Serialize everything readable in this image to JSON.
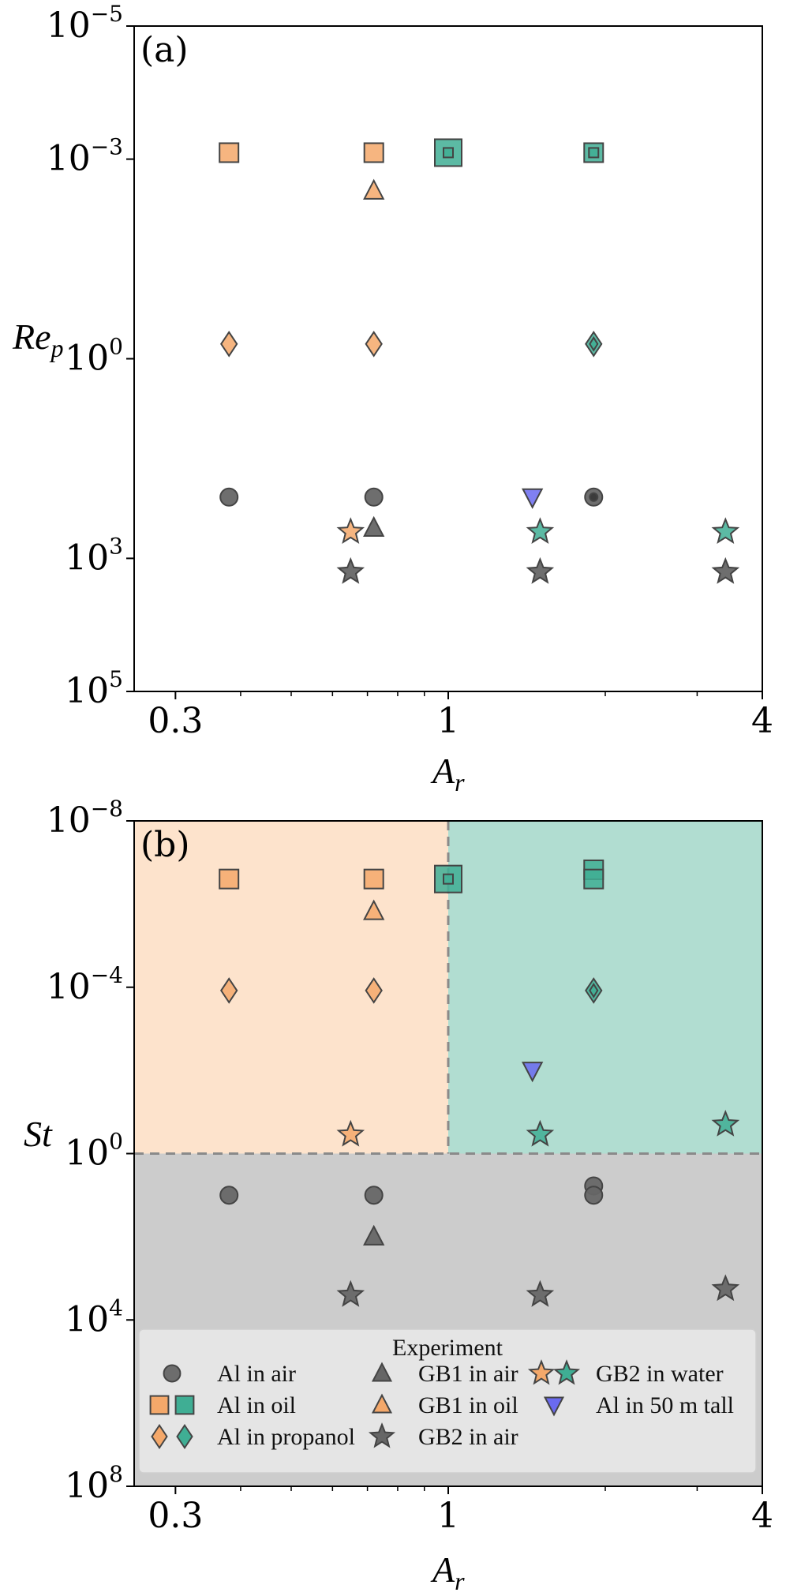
{
  "chart_data": [
    {
      "type": "scatter",
      "panel_label": "(a)",
      "xlabel": "A",
      "xlabel_sub": "r",
      "ylabel": "Re",
      "ylabel_sub": "p",
      "x_scale": "log",
      "y_scale": "log",
      "y_inverted": true,
      "xlim": [
        0.25,
        4
      ],
      "ylim": [
        100000,
        1e-05
      ],
      "x_ticks": [
        {
          "value": 0.3,
          "label": "0.3"
        },
        {
          "value": 1,
          "label": "1"
        },
        {
          "value": 4,
          "label": "4"
        }
      ],
      "y_ticks": [
        {
          "value": 1e-05,
          "base": "10",
          "exp": "−5"
        },
        {
          "value": 0.001,
          "base": "10",
          "exp": "−3"
        },
        {
          "value": 1,
          "base": "10",
          "exp": "0"
        },
        {
          "value": 1000,
          "base": "10",
          "exp": "3"
        },
        {
          "value": 100000,
          "base": "10",
          "exp": "5"
        }
      ],
      "points": [
        {
          "group": "Al in oil",
          "marker": "square",
          "color": "#f4a86a",
          "x": 0.38,
          "y": 0.0008
        },
        {
          "group": "Al in oil",
          "marker": "square",
          "color": "#f4a86a",
          "x": 0.72,
          "y": 0.0008
        },
        {
          "group": "Al in oil",
          "marker": "square-big",
          "color": "#3fae94",
          "x": 1.0,
          "y": 0.0008
        },
        {
          "group": "Al in oil",
          "marker": "square-inner",
          "color": "#3fae94",
          "x": 1.0,
          "y": 0.0008
        },
        {
          "group": "Al in oil",
          "marker": "square",
          "color": "#3fae94",
          "x": 1.9,
          "y": 0.0008
        },
        {
          "group": "Al in oil",
          "marker": "square-inner",
          "color": "#3fae94",
          "x": 1.9,
          "y": 0.0008
        },
        {
          "group": "GB1 in oil",
          "marker": "triangle-up",
          "color": "#f4a86a",
          "x": 0.72,
          "y": 0.003
        },
        {
          "group": "Al in propanol",
          "marker": "diamond",
          "color": "#f4a86a",
          "x": 0.38,
          "y": 0.6
        },
        {
          "group": "Al in propanol",
          "marker": "diamond",
          "color": "#f4a86a",
          "x": 0.72,
          "y": 0.6
        },
        {
          "group": "Al in propanol",
          "marker": "diamond",
          "color": "#3fae94",
          "x": 1.9,
          "y": 0.6
        },
        {
          "group": "Al in propanol",
          "marker": "diamond-small",
          "color": "#3fae94",
          "x": 1.9,
          "y": 0.6
        },
        {
          "group": "Al in air",
          "marker": "circle",
          "color": "#666666",
          "x": 0.38,
          "y": 120
        },
        {
          "group": "Al in air",
          "marker": "circle",
          "color": "#666666",
          "x": 0.72,
          "y": 120
        },
        {
          "group": "Al in air",
          "marker": "circle",
          "color": "#666666",
          "x": 1.9,
          "y": 120
        },
        {
          "group": "Al in air",
          "marker": "circle-small",
          "color": "#333333",
          "x": 1.9,
          "y": 120
        },
        {
          "group": "Al in 50 m tall",
          "marker": "triangle-down",
          "color": "#6a6af0",
          "x": 1.45,
          "y": 120
        },
        {
          "group": "GB2 in water",
          "marker": "star",
          "color": "#f4a86a",
          "x": 0.65,
          "y": 400
        },
        {
          "group": "GB1 in air",
          "marker": "triangle-up",
          "color": "#666666",
          "x": 0.72,
          "y": 350
        },
        {
          "group": "GB2 in water",
          "marker": "star",
          "color": "#3fae94",
          "x": 1.5,
          "y": 400
        },
        {
          "group": "GB2 in water",
          "marker": "star",
          "color": "#3fae94",
          "x": 3.4,
          "y": 400
        },
        {
          "group": "GB2 in air",
          "marker": "star",
          "color": "#666666",
          "x": 0.65,
          "y": 1600
        },
        {
          "group": "GB2 in air",
          "marker": "star",
          "color": "#666666",
          "x": 1.5,
          "y": 1600
        },
        {
          "group": "GB2 in air",
          "marker": "star",
          "color": "#666666",
          "x": 3.4,
          "y": 1600
        }
      ]
    },
    {
      "type": "scatter",
      "panel_label": "(b)",
      "xlabel": "A",
      "xlabel_sub": "r",
      "ylabel": "St",
      "x_scale": "log",
      "y_scale": "log",
      "y_inverted": true,
      "xlim": [
        0.25,
        4
      ],
      "ylim": [
        100000000,
        1e-08
      ],
      "x_ticks": [
        {
          "value": 0.3,
          "label": "0.3"
        },
        {
          "value": 1,
          "label": "1"
        },
        {
          "value": 4,
          "label": "4"
        }
      ],
      "y_ticks": [
        {
          "value": 1e-08,
          "base": "10",
          "exp": "−8"
        },
        {
          "value": 0.0001,
          "base": "10",
          "exp": "−4"
        },
        {
          "value": 1,
          "base": "10",
          "exp": "0"
        },
        {
          "value": 10000,
          "base": "10",
          "exp": "4"
        },
        {
          "value": 100000000,
          "base": "10",
          "exp": "8"
        }
      ],
      "regions": [
        {
          "name": "orange",
          "color": "#fde3cc",
          "x0": 0.25,
          "x1": 1,
          "y0": 1e-08,
          "y1": 1
        },
        {
          "name": "teal",
          "color": "#b1ddd1",
          "x0": 1,
          "x1": 4,
          "y0": 1e-08,
          "y1": 1
        },
        {
          "name": "gray",
          "color": "#cccccc",
          "x0": 0.25,
          "x1": 4,
          "y0": 1,
          "y1": 100000000
        }
      ],
      "dividers": {
        "x": 1,
        "y": 1
      },
      "points": [
        {
          "group": "Al in oil",
          "marker": "square",
          "color": "#f4a86a",
          "x": 0.38,
          "y": 2.5e-07
        },
        {
          "group": "Al in oil",
          "marker": "square",
          "color": "#f4a86a",
          "x": 0.72,
          "y": 2.5e-07
        },
        {
          "group": "Al in oil",
          "marker": "square-big",
          "color": "#3fae94",
          "x": 1.0,
          "y": 2.5e-07
        },
        {
          "group": "Al in oil",
          "marker": "square-inner",
          "color": "#3fae94",
          "x": 1.0,
          "y": 2.5e-07
        },
        {
          "group": "Al in oil",
          "marker": "square",
          "color": "#3fae94",
          "x": 1.9,
          "y": 1.5e-07
        },
        {
          "group": "Al in oil",
          "marker": "square",
          "color": "#3fae94",
          "x": 1.9,
          "y": 2.5e-07
        },
        {
          "group": "GB1 in oil",
          "marker": "triangle-up",
          "color": "#f4a86a",
          "x": 0.72,
          "y": 1.5e-06
        },
        {
          "group": "Al in propanol",
          "marker": "diamond",
          "color": "#f4a86a",
          "x": 0.38,
          "y": 0.00012
        },
        {
          "group": "Al in propanol",
          "marker": "diamond",
          "color": "#f4a86a",
          "x": 0.72,
          "y": 0.00012
        },
        {
          "group": "Al in propanol",
          "marker": "diamond",
          "color": "#3fae94",
          "x": 1.9,
          "y": 0.00012
        },
        {
          "group": "Al in propanol",
          "marker": "diamond-small",
          "color": "#3fae94",
          "x": 1.9,
          "y": 0.00012
        },
        {
          "group": "Al in 50 m tall",
          "marker": "triangle-down",
          "color": "#6a6af0",
          "x": 1.45,
          "y": 0.01
        },
        {
          "group": "GB2 in water",
          "marker": "star",
          "color": "#f4a86a",
          "x": 0.65,
          "y": 0.35
        },
        {
          "group": "GB2 in water",
          "marker": "star",
          "color": "#3fae94",
          "x": 1.5,
          "y": 0.35
        },
        {
          "group": "GB2 in water",
          "marker": "star",
          "color": "#3fae94",
          "x": 3.4,
          "y": 0.2
        },
        {
          "group": "Al in air",
          "marker": "circle",
          "color": "#666666",
          "x": 0.38,
          "y": 10
        },
        {
          "group": "Al in air",
          "marker": "circle",
          "color": "#666666",
          "x": 0.72,
          "y": 10
        },
        {
          "group": "Al in air",
          "marker": "circle",
          "color": "#666666",
          "x": 1.9,
          "y": 6
        },
        {
          "group": "Al in air",
          "marker": "circle",
          "color": "#666666",
          "x": 1.9,
          "y": 10
        },
        {
          "group": "GB1 in air",
          "marker": "triangle-up",
          "color": "#666666",
          "x": 0.72,
          "y": 100
        },
        {
          "group": "GB2 in air",
          "marker": "star",
          "color": "#666666",
          "x": 0.65,
          "y": 2500
        },
        {
          "group": "GB2 in air",
          "marker": "star",
          "color": "#666666",
          "x": 1.5,
          "y": 2500
        },
        {
          "group": "GB2 in air",
          "marker": "star",
          "color": "#666666",
          "x": 3.4,
          "y": 1800
        }
      ]
    }
  ],
  "legend": {
    "title": "Experiment",
    "placement": "bottom of panel (b)",
    "entries": [
      {
        "label": "Al  in air",
        "markers": [
          {
            "shape": "circle",
            "color": "#666666"
          }
        ]
      },
      {
        "label": "Al  in oil",
        "markers": [
          {
            "shape": "square",
            "color": "#f4a86a"
          },
          {
            "shape": "square",
            "color": "#3fae94"
          }
        ]
      },
      {
        "label": "Al  in propanol",
        "markers": [
          {
            "shape": "diamond",
            "color": "#f4a86a"
          },
          {
            "shape": "diamond",
            "color": "#3fae94"
          }
        ]
      },
      {
        "label": "GB1  in air",
        "markers": [
          {
            "shape": "triangle-up",
            "color": "#666666"
          }
        ]
      },
      {
        "label": "GB1  in oil",
        "markers": [
          {
            "shape": "triangle-up",
            "color": "#f4a86a"
          }
        ]
      },
      {
        "label": "GB2  in air",
        "markers": [
          {
            "shape": "star",
            "color": "#666666"
          }
        ]
      },
      {
        "label": "GB2  in water",
        "markers": [
          {
            "shape": "star",
            "color": "#f4a86a"
          },
          {
            "shape": "star",
            "color": "#3fae94"
          }
        ]
      },
      {
        "label": "Al  in 50  m  tall",
        "markers": [
          {
            "shape": "triangle-down",
            "color": "#6a6af0"
          }
        ]
      }
    ]
  }
}
